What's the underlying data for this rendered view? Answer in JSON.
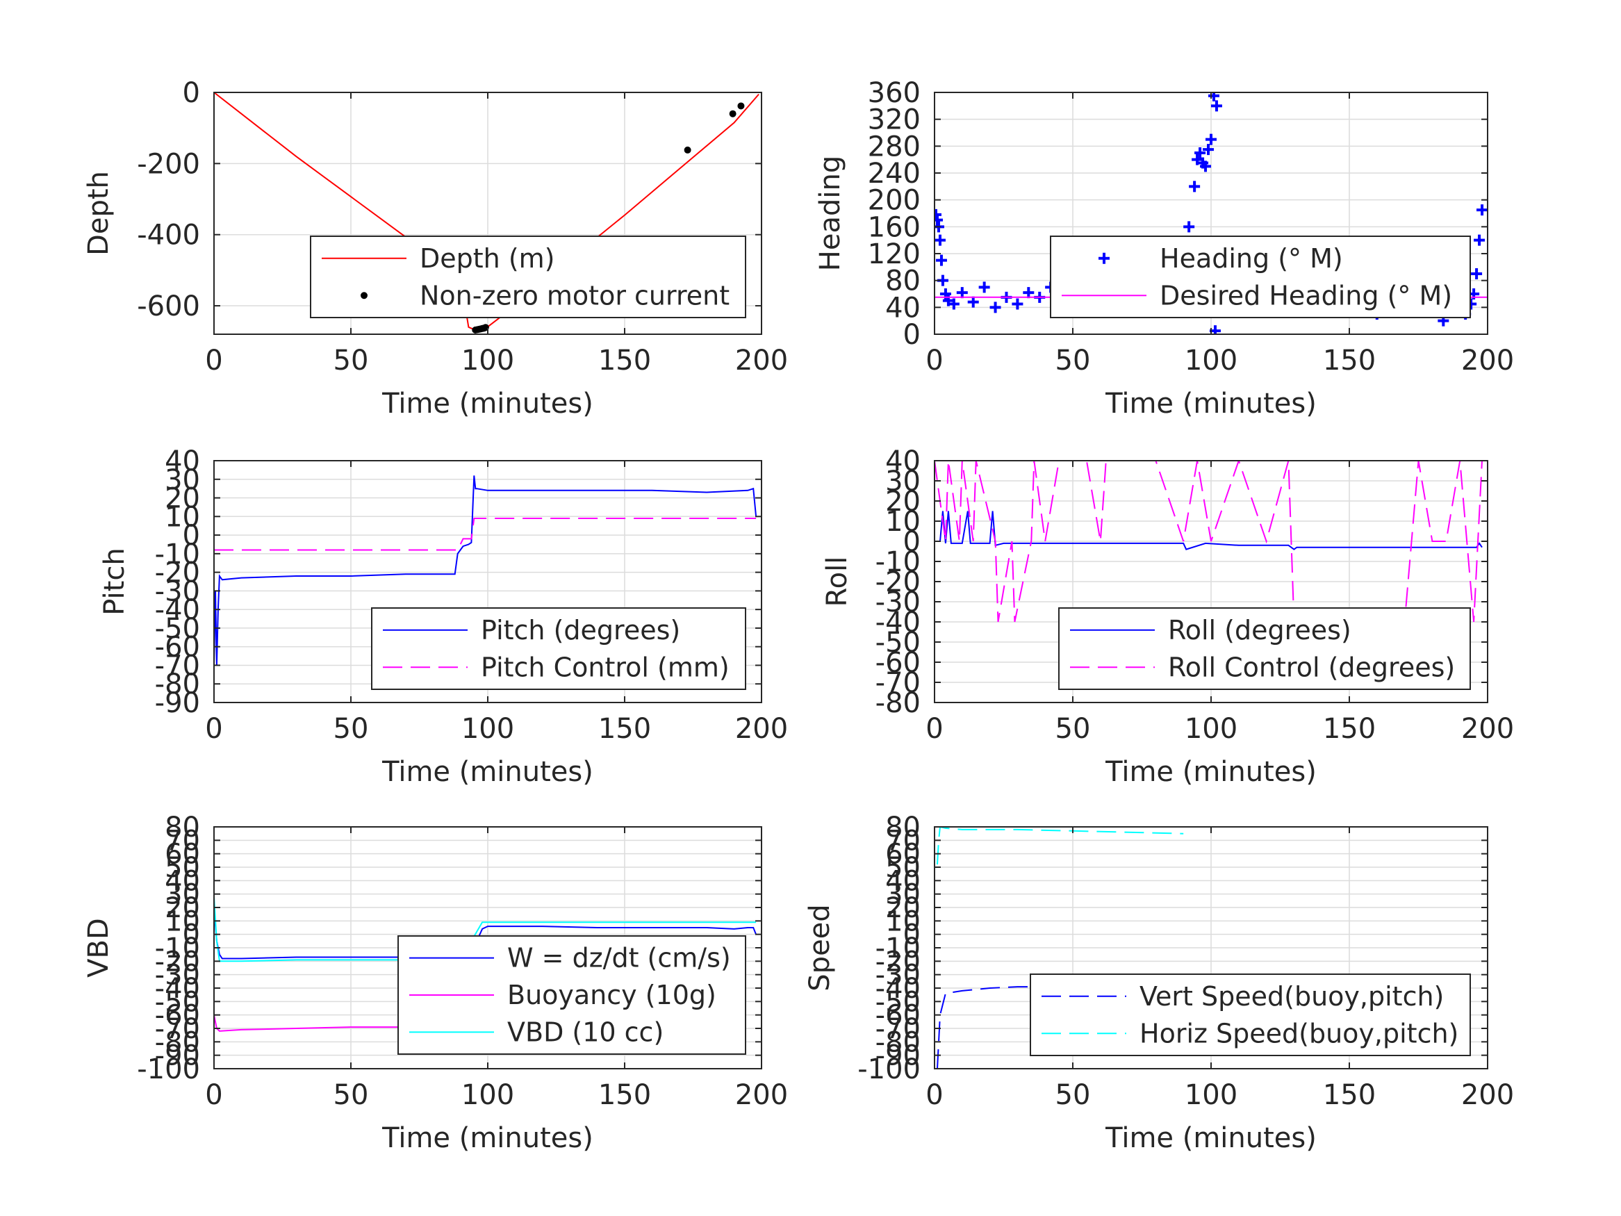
{
  "figure": {
    "background": "#ffffff"
  },
  "colors": {
    "axis": "#262626",
    "grid": "#dcdcdc",
    "red": "#ff0000",
    "blue": "#0000ff",
    "magenta": "#ff00ff",
    "cyan": "#00ffff",
    "black": "#000000"
  },
  "chart_data": [
    {
      "id": "depth",
      "type": "line",
      "xlabel": "Time (minutes)",
      "ylabel": "Depth",
      "xlim": [
        0,
        200
      ],
      "ylim": [
        -680,
        0
      ],
      "xticks": [
        0,
        50,
        100,
        150,
        200
      ],
      "yticks": [
        0,
        -200,
        -400,
        -600
      ],
      "grid": true,
      "legend": "bottom-right",
      "series": [
        {
          "name": "Depth (m)",
          "style": "line",
          "color": "#ff0000",
          "x": [
            0,
            15,
            30,
            45,
            60,
            75,
            90,
            93,
            96,
            99,
            110,
            130,
            150,
            170,
            190,
            199
          ],
          "y": [
            0,
            -90,
            -180,
            -265,
            -350,
            -435,
            -520,
            -660,
            -670,
            -665,
            -600,
            -470,
            -345,
            -215,
            -85,
            -5
          ]
        },
        {
          "name": "Non-zero motor current",
          "style": "dots",
          "color": "#000000",
          "x": [
            95.5,
            96.2,
            96.8,
            97.4,
            98,
            98.6,
            99.2,
            173,
            189.5,
            192.5
          ],
          "y": [
            -668,
            -667,
            -666,
            -665,
            -664,
            -663,
            -661,
            -162,
            -60,
            -38
          ]
        }
      ]
    },
    {
      "id": "heading",
      "type": "scatter",
      "xlabel": "Time (minutes)",
      "ylabel": "Heading",
      "xlim": [
        0,
        200
      ],
      "ylim": [
        0,
        360
      ],
      "xticks": [
        0,
        50,
        100,
        150,
        200
      ],
      "yticks": [
        0,
        40,
        80,
        120,
        160,
        200,
        240,
        280,
        320,
        360
      ],
      "grid": true,
      "legend": "bottom-right",
      "series": [
        {
          "name": "Heading (° M)",
          "style": "plus",
          "color": "#0000ff",
          "x": [
            0.5,
            1,
            1.5,
            2,
            2.5,
            3,
            4,
            5,
            7,
            10,
            14,
            18,
            22,
            26,
            30,
            34,
            38,
            42,
            46,
            50,
            54,
            58,
            62,
            66,
            70,
            74,
            78,
            82,
            86,
            88,
            90,
            92,
            94,
            95,
            96,
            97,
            98,
            99,
            100,
            101,
            101.5,
            102,
            104,
            108,
            112,
            116,
            120,
            124,
            128,
            132,
            136,
            140,
            144,
            148,
            152,
            156,
            160,
            164,
            168,
            172,
            176,
            180,
            184,
            188,
            192,
            194,
            195,
            196,
            197,
            198
          ],
          "y": [
            178,
            170,
            160,
            140,
            110,
            80,
            60,
            50,
            45,
            62,
            48,
            70,
            40,
            55,
            45,
            62,
            55,
            70,
            48,
            60,
            52,
            65,
            50,
            72,
            48,
            55,
            62,
            50,
            60,
            70,
            100,
            160,
            220,
            260,
            270,
            255,
            250,
            275,
            290,
            355,
            5,
            340,
            60,
            45,
            50,
            70,
            40,
            55,
            45,
            70,
            40,
            50,
            35,
            75,
            40,
            60,
            30,
            70,
            45,
            95,
            35,
            40,
            20,
            35,
            30,
            45,
            60,
            90,
            140,
            185
          ]
        },
        {
          "name": "Desired Heading (° M)",
          "style": "line",
          "color": "#ff00ff",
          "x": [
            0,
            200
          ],
          "y": [
            55,
            55
          ]
        }
      ]
    },
    {
      "id": "pitch",
      "type": "line",
      "xlabel": "Time (minutes)",
      "ylabel": "Pitch",
      "xlim": [
        0,
        200
      ],
      "ylim": [
        -90,
        40
      ],
      "xticks": [
        0,
        50,
        100,
        150,
        200
      ],
      "yticks": [
        40,
        30,
        20,
        10,
        0,
        -10,
        -20,
        -30,
        -40,
        -50,
        -60,
        -70,
        -80,
        -90
      ],
      "grid": true,
      "legend": "bottom-right",
      "series": [
        {
          "name": "Pitch (degrees)",
          "style": "line",
          "color": "#0000ff",
          "x": [
            0,
            0.5,
            1,
            1.5,
            2,
            3,
            10,
            30,
            50,
            70,
            88,
            89,
            91,
            93,
            94,
            95,
            95.5,
            96,
            100,
            120,
            140,
            160,
            180,
            195,
            197,
            198
          ],
          "y": [
            -70,
            -30,
            -70,
            -40,
            -22,
            -24,
            -23,
            -22,
            -22,
            -21,
            -21,
            -10,
            -6,
            -5,
            -4,
            32,
            25,
            25,
            24,
            24,
            24,
            24,
            23,
            24,
            25,
            10
          ]
        },
        {
          "name": "Pitch Control (mm)",
          "style": "dash",
          "color": "#ff00ff",
          "x": [
            0,
            89,
            91,
            94,
            95,
            198
          ],
          "y": [
            -8,
            -8,
            -2,
            -2,
            9,
            9
          ]
        }
      ]
    },
    {
      "id": "roll",
      "type": "line",
      "xlabel": "Time (minutes)",
      "ylabel": "Roll",
      "xlim": [
        0,
        200
      ],
      "ylim": [
        -80,
        40
      ],
      "xticks": [
        0,
        50,
        100,
        150,
        200
      ],
      "yticks": [
        40,
        30,
        20,
        10,
        0,
        -10,
        -20,
        -30,
        -40,
        -50,
        -60,
        -70,
        -80
      ],
      "grid": true,
      "legend": "bottom-right",
      "series": [
        {
          "name": "Roll (degrees)",
          "style": "line",
          "color": "#0000ff",
          "x": [
            0,
            2,
            3,
            4,
            5,
            6,
            10,
            12,
            13,
            20,
            21,
            22,
            25,
            30,
            45,
            55,
            65,
            90,
            91,
            98,
            110,
            128,
            130,
            131,
            150,
            170,
            190,
            196,
            197,
            198
          ],
          "y": [
            0,
            0,
            15,
            -1,
            15,
            -1,
            -1,
            15,
            -1,
            -1,
            15,
            -2,
            -1,
            -1,
            -1,
            -1,
            -1,
            -1,
            -4,
            -1,
            -2,
            -2,
            -4,
            -3,
            -3,
            -3,
            -3,
            -3,
            -1,
            -3
          ]
        },
        {
          "name": "Roll Control (degrees)",
          "style": "dash",
          "color": "#ff00ff",
          "x": [
            0,
            4,
            5,
            9,
            10,
            14,
            15,
            22,
            23,
            28,
            29,
            35,
            36,
            40,
            45,
            55,
            60,
            62,
            70,
            80,
            90,
            95,
            100,
            110,
            120,
            128,
            130,
            140,
            150,
            160,
            170,
            175,
            180,
            185,
            190,
            195,
            198
          ],
          "y": [
            40,
            0,
            40,
            0,
            40,
            0,
            40,
            0,
            -40,
            0,
            -40,
            0,
            40,
            0,
            40,
            40,
            0,
            40,
            40,
            40,
            0,
            40,
            0,
            40,
            0,
            40,
            -40,
            -40,
            -40,
            -40,
            -40,
            40,
            0,
            0,
            40,
            -40,
            40
          ]
        }
      ]
    },
    {
      "id": "vbd",
      "type": "line",
      "xlabel": "Time (minutes)",
      "ylabel": "VBD",
      "xlim": [
        0,
        200
      ],
      "ylim": [
        -100,
        80
      ],
      "xticks": [
        0,
        50,
        100,
        150,
        200
      ],
      "yticks": [
        80,
        70,
        60,
        50,
        40,
        30,
        20,
        10,
        0,
        -10,
        -20,
        -30,
        -40,
        -50,
        -60,
        -70,
        -80,
        -90,
        -100
      ],
      "grid": true,
      "legend": "bottom-right",
      "series": [
        {
          "name": "W = dz/dt (cm/s)",
          "style": "line",
          "color": "#0000ff",
          "x": [
            0,
            1,
            2,
            3,
            10,
            30,
            50,
            70,
            88,
            90,
            93,
            96,
            98,
            100,
            120,
            140,
            160,
            180,
            190,
            195,
            197,
            198
          ],
          "y": [
            20,
            -5,
            -15,
            -18,
            -18,
            -17,
            -17,
            -17,
            -17,
            -16,
            -10,
            -5,
            4,
            6,
            6,
            5,
            5,
            5,
            4,
            5,
            5,
            0
          ]
        },
        {
          "name": "Buoyancy (10g)",
          "style": "line",
          "color": "#ff00ff",
          "x": [
            0,
            1,
            2,
            10,
            30,
            50,
            70,
            88
          ],
          "y": [
            -60,
            -70,
            -72,
            -71,
            -70,
            -69,
            -69,
            -68
          ]
        },
        {
          "name": "VBD (10 cc)",
          "style": "line",
          "color": "#00ffff",
          "x": [
            0,
            1,
            2,
            3,
            10,
            30,
            50,
            70,
            89,
            90,
            94,
            98,
            100,
            120,
            140,
            160,
            180,
            198
          ],
          "y": [
            28,
            -5,
            -20,
            -20,
            -20,
            -19,
            -19,
            -19,
            -19,
            -15,
            -5,
            9,
            9,
            9,
            9,
            9,
            9,
            9
          ]
        }
      ]
    },
    {
      "id": "speed",
      "type": "line",
      "xlabel": "Time (minutes)",
      "ylabel": "Speed",
      "xlim": [
        0,
        200
      ],
      "ylim": [
        -100,
        80
      ],
      "xticks": [
        0,
        50,
        100,
        150,
        200
      ],
      "yticks": [
        80,
        70,
        60,
        50,
        40,
        30,
        20,
        10,
        0,
        -10,
        -20,
        -30,
        -40,
        -50,
        -60,
        -70,
        -80,
        -90,
        -100
      ],
      "grid": true,
      "legend": "bottom-right",
      "series": [
        {
          "name": "Vert Speed(buoy,pitch)",
          "style": "dash",
          "color": "#0000ff",
          "x": [
            1,
            1.5,
            2,
            4,
            10,
            20,
            30,
            45,
            60,
            75,
            90
          ],
          "y": [
            -100,
            -80,
            -60,
            -44,
            -42,
            -40,
            -39,
            -39,
            -38,
            -38,
            -38
          ]
        },
        {
          "name": "Horiz Speed(buoy,pitch)",
          "style": "dash",
          "color": "#00ffff",
          "x": [
            1,
            1.5,
            2,
            4,
            10,
            30,
            50,
            70,
            90
          ],
          "y": [
            52,
            70,
            80,
            79,
            78,
            78,
            77,
            76,
            75
          ]
        }
      ]
    }
  ]
}
